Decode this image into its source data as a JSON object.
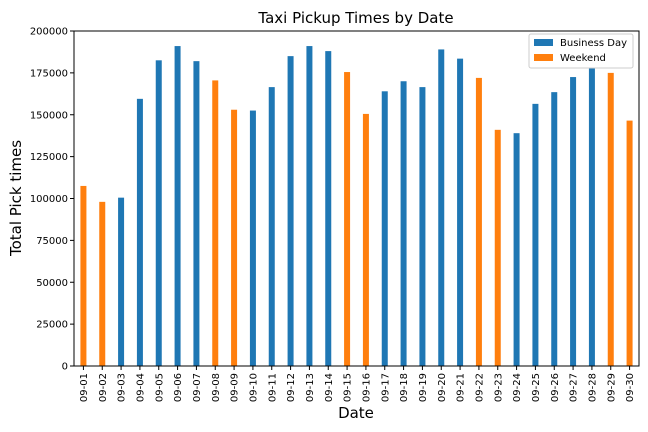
{
  "chart_data": {
    "type": "bar",
    "title": "Taxi Pickup Times by Date",
    "xlabel": "Date",
    "ylabel": "Total Pick times",
    "ylim": [
      0,
      200000
    ],
    "yticks": [
      "0",
      "25000",
      "50000",
      "75000",
      "100000",
      "125000",
      "150000",
      "175000",
      "200000"
    ],
    "grid": false,
    "legend_position": "top-right",
    "series": [
      {
        "name": "Business Day",
        "color": "#1f77b4"
      },
      {
        "name": "Weekend",
        "color": "#ff7f0e"
      }
    ],
    "categories": [
      "09-01",
      "09-02",
      "09-03",
      "09-04",
      "09-05",
      "09-06",
      "09-07",
      "09-08",
      "09-09",
      "09-10",
      "09-11",
      "09-12",
      "09-13",
      "09-14",
      "09-15",
      "09-16",
      "09-17",
      "09-18",
      "09-19",
      "09-20",
      "09-21",
      "09-22",
      "09-23",
      "09-24",
      "09-25",
      "09-26",
      "09-27",
      "09-28",
      "09-29",
      "09-30"
    ],
    "values": [
      107500,
      98000,
      100500,
      159500,
      182500,
      191000,
      182000,
      170500,
      153000,
      152500,
      166500,
      185000,
      191000,
      188000,
      175500,
      150500,
      164000,
      170000,
      166500,
      189000,
      183500,
      172000,
      141000,
      139000,
      156500,
      163500,
      172500,
      179000,
      175000,
      146500
    ],
    "series_of_bar": [
      1,
      1,
      0,
      0,
      0,
      0,
      0,
      1,
      1,
      0,
      0,
      0,
      0,
      0,
      1,
      1,
      0,
      0,
      0,
      0,
      0,
      1,
      1,
      0,
      0,
      0,
      0,
      0,
      1,
      1
    ]
  }
}
